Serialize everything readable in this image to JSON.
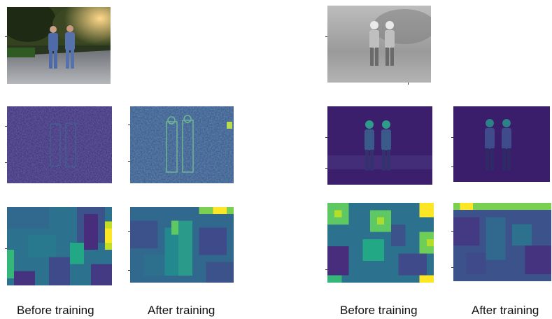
{
  "captions": {
    "left_before": "Before training",
    "left_after": "After training",
    "right_before": "Before training",
    "right_after": "After training"
  },
  "colors": {
    "viridis_dark": "#440154",
    "viridis_blue": "#3b528b",
    "viridis_teal": "#21918c",
    "viridis_green": "#5ec962",
    "viridis_yellow": "#fde725",
    "visible_sky": "#c9b98a",
    "visible_trees": "#2c3a1e",
    "visible_road": "#8a8c92",
    "thermal_bg": "#a9a9a9",
    "thermal_person": "#f2f2f2"
  }
}
